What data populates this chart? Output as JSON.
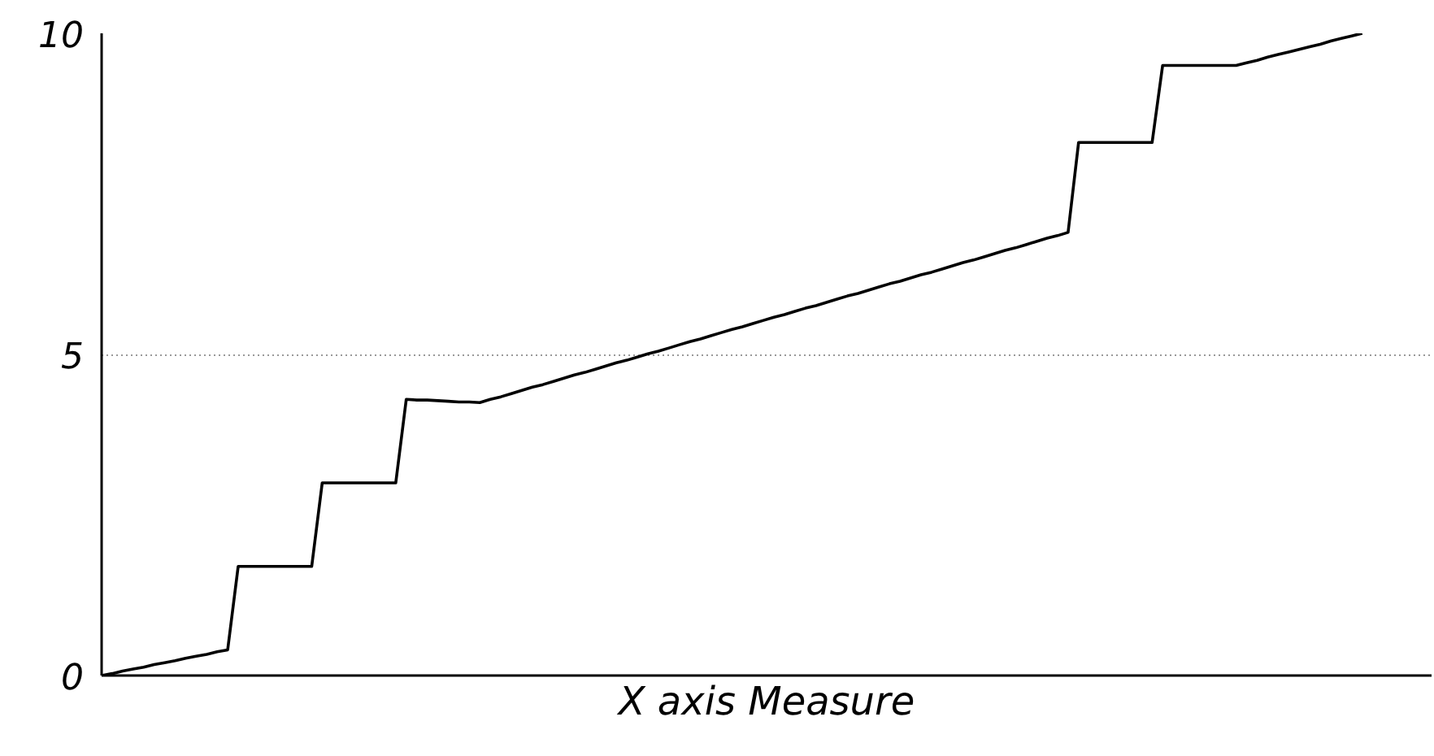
{
  "chart_data": {
    "type": "line",
    "xlabel": "X axis Measure",
    "categories": [
      null,
      null,
      null,
      null,
      null,
      null,
      null,
      null,
      null,
      null,
      null,
      null,
      null,
      null,
      null,
      null,
      null,
      null,
      null,
      null,
      null,
      null,
      null,
      null,
      null,
      null,
      null,
      null,
      null,
      null,
      null,
      null,
      null,
      null,
      null,
      null,
      null,
      null,
      null,
      null,
      null,
      null,
      null,
      null,
      null,
      null,
      null,
      null,
      null,
      null,
      null,
      null,
      null,
      null,
      null,
      null,
      null,
      null,
      null,
      null,
      null,
      null,
      null,
      null,
      null,
      null,
      null,
      null,
      null,
      null,
      null,
      null,
      null,
      null,
      null,
      null,
      null,
      null,
      null,
      null,
      null,
      null,
      null,
      null,
      null,
      null,
      null,
      null,
      null,
      null,
      null,
      null,
      null,
      null,
      null,
      null,
      null,
      null,
      null,
      null,
      null,
      null,
      null,
      null,
      null,
      null,
      null,
      null,
      null,
      null,
      null,
      null,
      null,
      null,
      null,
      null,
      null,
      null,
      null,
      null,
      null
    ],
    "series": [
      {
        "color": "#000000",
        "values": [
          0,
          0.03,
          0.07,
          0.1,
          0.13,
          0.17,
          0.2,
          0.23,
          0.27,
          0.3,
          0.33,
          0.37,
          0.4,
          1.7,
          1.7,
          1.7,
          1.7,
          1.7,
          1.7,
          1.7,
          1.7,
          3.0,
          3.0,
          3.0,
          3.0,
          3.0,
          3.0,
          3.0,
          3.0,
          4.3,
          4.29,
          4.29,
          4.28,
          4.27,
          4.26,
          4.26,
          4.25,
          4.3,
          4.34,
          4.39,
          4.44,
          4.49,
          4.53,
          4.58,
          4.63,
          4.68,
          4.72,
          4.77,
          4.82,
          4.87,
          4.91,
          4.96,
          5.01,
          5.05,
          5.1,
          5.15,
          5.2,
          5.24,
          5.29,
          5.34,
          5.39,
          5.43,
          5.48,
          5.53,
          5.58,
          5.62,
          5.67,
          5.72,
          5.76,
          5.81,
          5.86,
          5.91,
          5.95,
          6.0,
          6.05,
          6.1,
          6.14,
          6.19,
          6.24,
          6.28,
          6.33,
          6.38,
          6.43,
          6.47,
          6.52,
          6.57,
          6.62,
          6.66,
          6.71,
          6.76,
          6.81,
          6.85,
          6.9,
          8.3,
          8.3,
          8.3,
          8.3,
          8.3,
          8.3,
          8.3,
          8.3,
          9.5,
          9.5,
          9.5,
          9.5,
          9.5,
          9.5,
          9.5,
          9.5,
          9.54,
          9.58,
          9.63,
          9.67,
          9.71,
          9.75,
          9.79,
          9.83,
          9.88,
          9.92,
          9.96,
          10.0
        ]
      }
    ],
    "ylim": [
      0,
      10
    ],
    "yticks": [
      0,
      5,
      10
    ],
    "tick_labels": "y",
    "grid": "y",
    "marker": "none",
    "line_style": "solid"
  }
}
